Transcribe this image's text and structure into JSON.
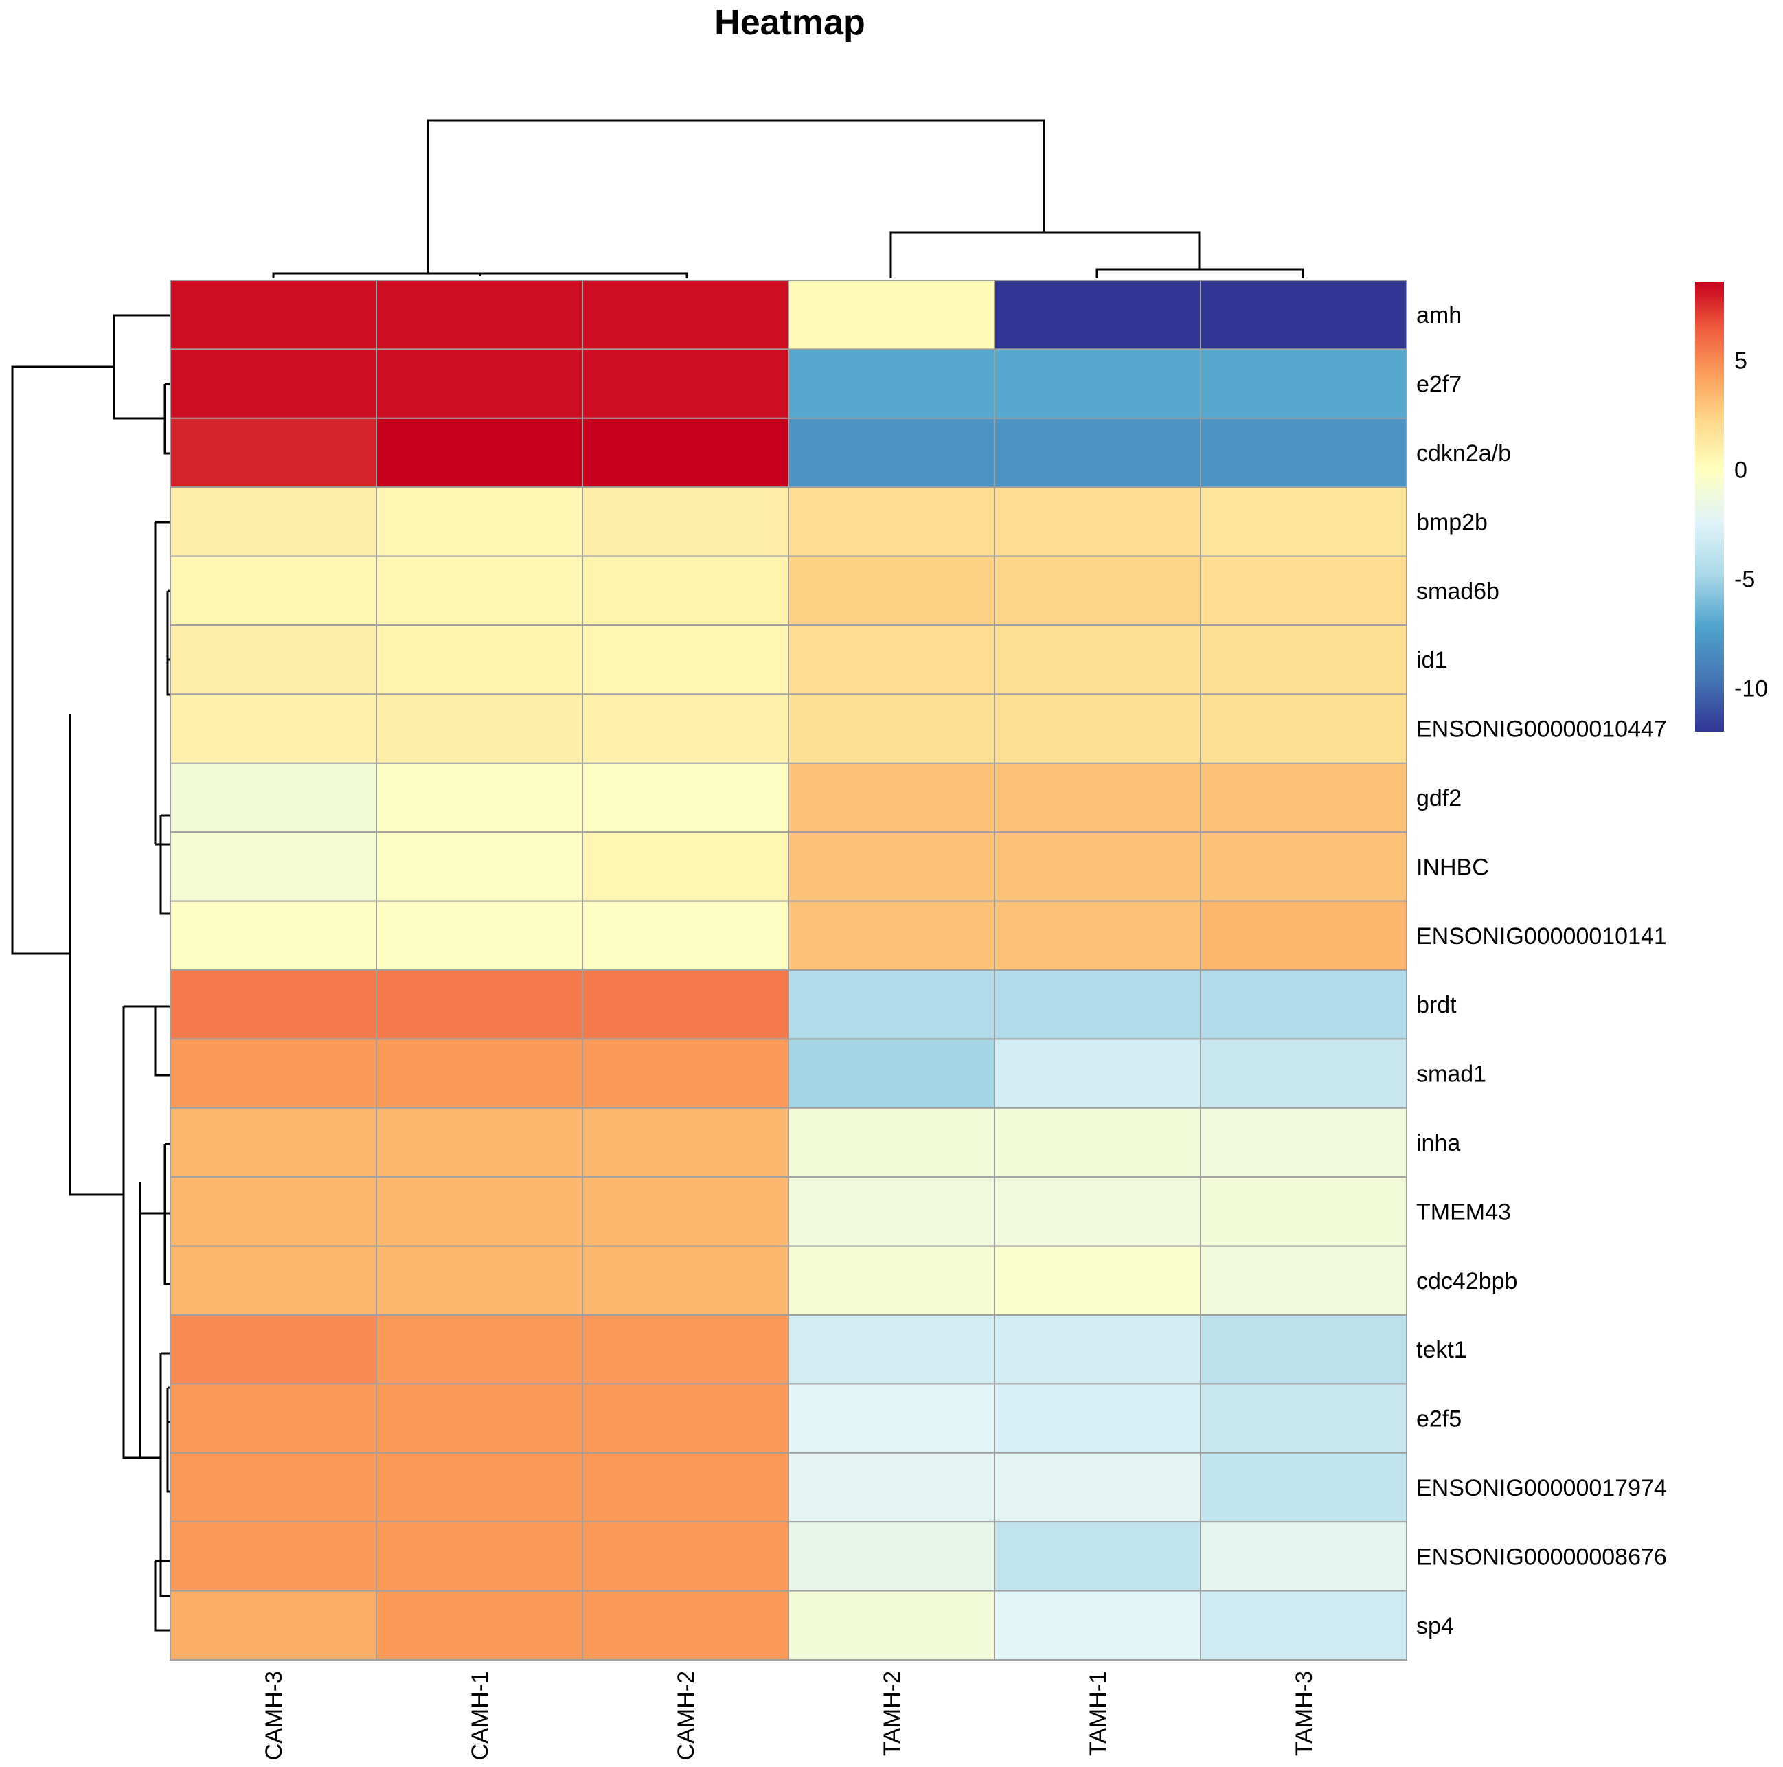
{
  "chart_data": {
    "type": "heatmap",
    "title": "Heatmap",
    "columns": [
      "CAMH-3",
      "CAMH-1",
      "CAMH-2",
      "TAMH-2",
      "TAMH-1",
      "TAMH-3"
    ],
    "rows": [
      "amh",
      "e2f7",
      "cdkn2a/b",
      "bmp2b",
      "smad6b",
      "id1",
      "ENSONIG00000010447",
      "gdf2",
      "INHBC",
      "ENSONIG00000010141",
      "brdt",
      "smad1",
      "inha",
      "TMEM43",
      "cdc42bpb",
      "tekt1",
      "e2f5",
      "ENSONIG00000017974",
      "ENSONIG00000008676",
      "sp4"
    ],
    "values": [
      [
        8.3,
        8.3,
        8.3,
        0.3,
        -12.0,
        -12.0
      ],
      [
        8.3,
        8.3,
        8.3,
        -7.0,
        -7.0,
        -7.0
      ],
      [
        7.8,
        8.6,
        8.6,
        -8.0,
        -8.0,
        -8.0
      ],
      [
        1.0,
        0.5,
        1.0,
        2.0,
        2.0,
        1.5
      ],
      [
        0.5,
        0.5,
        0.7,
        2.5,
        2.3,
        2.0
      ],
      [
        1.0,
        0.7,
        0.5,
        2.0,
        1.8,
        1.8
      ],
      [
        0.8,
        1.0,
        0.8,
        1.8,
        1.8,
        1.8
      ],
      [
        -1.0,
        -0.2,
        -0.2,
        3.0,
        3.0,
        3.0
      ],
      [
        -0.8,
        -0.2,
        0.5,
        3.0,
        3.0,
        3.0
      ],
      [
        -0.2,
        -0.2,
        -0.2,
        3.0,
        3.0,
        3.5
      ],
      [
        5.5,
        5.5,
        5.5,
        -4.5,
        -4.5,
        -4.5
      ],
      [
        4.5,
        4.5,
        4.5,
        -5.0,
        -3.0,
        -3.5
      ],
      [
        3.5,
        3.5,
        3.5,
        -1.0,
        -1.0,
        -1.2
      ],
      [
        3.5,
        3.5,
        3.5,
        -1.2,
        -1.2,
        -1.0
      ],
      [
        3.5,
        3.5,
        3.5,
        -0.8,
        -0.5,
        -1.2
      ],
      [
        5.0,
        4.5,
        4.5,
        -3.0,
        -3.0,
        -4.0
      ],
      [
        4.5,
        4.5,
        4.5,
        -2.3,
        -2.8,
        -3.5
      ],
      [
        4.5,
        4.5,
        4.5,
        -2.2,
        -2.2,
        -3.8
      ],
      [
        4.5,
        4.5,
        4.5,
        -1.8,
        -3.8,
        -2.0
      ],
      [
        3.8,
        4.5,
        4.5,
        -1.0,
        -2.3,
        -3.2
      ]
    ],
    "color_scale": {
      "min": -12,
      "max": 8.6,
      "ticks": [
        5,
        0,
        -5,
        -10
      ],
      "stops": [
        {
          "value": -12,
          "color": "#313695"
        },
        {
          "value": -9.6,
          "color": "#4575b4"
        },
        {
          "value": -7.2,
          "color": "#4fa3cc"
        },
        {
          "value": -4.8,
          "color": "#abd9e9"
        },
        {
          "value": -2.4,
          "color": "#e0f3f8"
        },
        {
          "value": 0,
          "color": "#ffffbf"
        },
        {
          "value": 2.2,
          "color": "#fed98b"
        },
        {
          "value": 4.3,
          "color": "#fca05c"
        },
        {
          "value": 6.5,
          "color": "#ee5a3c"
        },
        {
          "value": 8.6,
          "color": "#c7001e"
        }
      ]
    }
  }
}
